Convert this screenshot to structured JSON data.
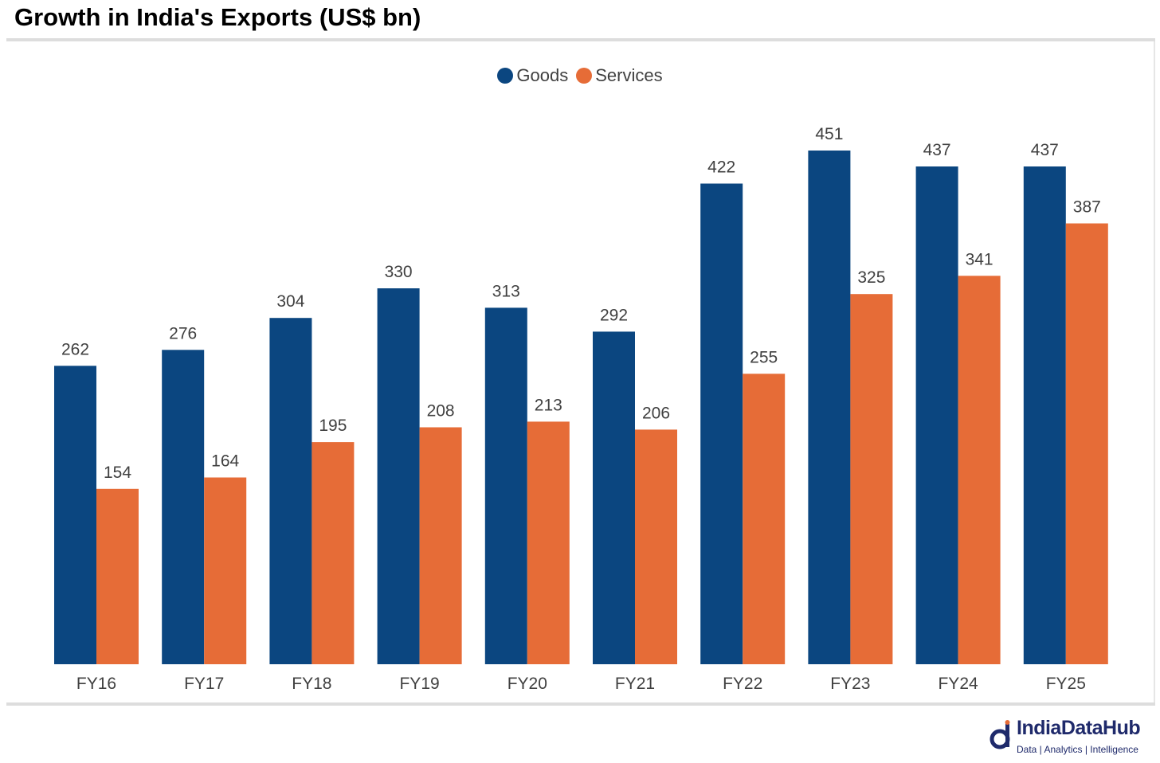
{
  "title": "Growth in India's Exports (US$ bn)",
  "colors": {
    "goods": "#0b4680",
    "services": "#e66c37",
    "label": "#404040",
    "brand": "#1f2a6b"
  },
  "chart_data": {
    "type": "bar",
    "title": "Growth in India's Exports (US$ bn)",
    "xlabel": "",
    "ylabel": "",
    "categories": [
      "FY16",
      "FY17",
      "FY18",
      "FY19",
      "FY20",
      "FY21",
      "FY22",
      "FY23",
      "FY24",
      "FY25"
    ],
    "series": [
      {
        "name": "Goods",
        "values": [
          262,
          276,
          304,
          330,
          313,
          292,
          422,
          451,
          437,
          437
        ]
      },
      {
        "name": "Services",
        "values": [
          154,
          164,
          195,
          208,
          213,
          206,
          255,
          325,
          341,
          387
        ]
      }
    ],
    "ylim": [
      0,
      451
    ],
    "grid": false,
    "legend": "top-center",
    "data_labels": true
  },
  "brand": {
    "name": "IndiaDataHub",
    "tagline": "Data | Analytics | Intelligence",
    "icon": "idh-logo-icon"
  }
}
